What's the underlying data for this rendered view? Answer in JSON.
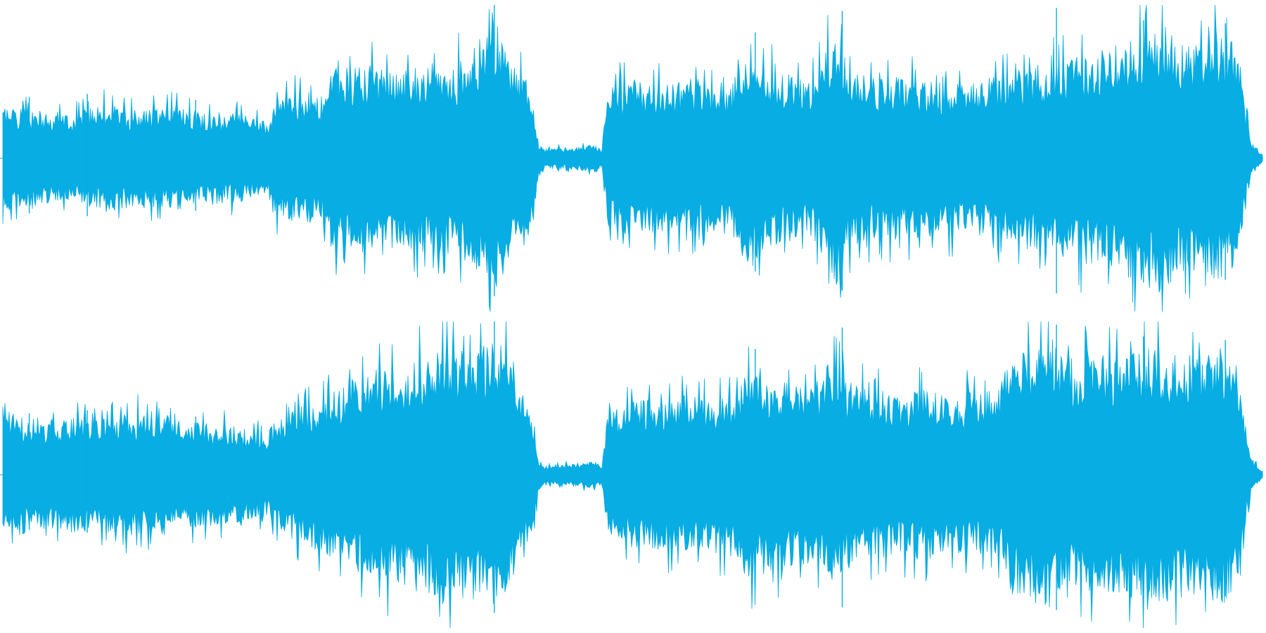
{
  "waveform": {
    "color": "#07ADE3",
    "background": "#FFFFFF",
    "channels": [
      {
        "name": "left",
        "envelope": [
          [
            0.0,
            0.35
          ],
          [
            0.02,
            0.34
          ],
          [
            0.04,
            0.28
          ],
          [
            0.06,
            0.3
          ],
          [
            0.08,
            0.36
          ],
          [
            0.1,
            0.33
          ],
          [
            0.12,
            0.32
          ],
          [
            0.14,
            0.35
          ],
          [
            0.16,
            0.31
          ],
          [
            0.18,
            0.3
          ],
          [
            0.2,
            0.27
          ],
          [
            0.21,
            0.24
          ],
          [
            0.215,
            0.38
          ],
          [
            0.24,
            0.44
          ],
          [
            0.255,
            0.42
          ],
          [
            0.26,
            0.58
          ],
          [
            0.28,
            0.62
          ],
          [
            0.3,
            0.6
          ],
          [
            0.32,
            0.58
          ],
          [
            0.34,
            0.64
          ],
          [
            0.36,
            0.62
          ],
          [
            0.37,
            0.72
          ],
          [
            0.38,
            0.8
          ],
          [
            0.39,
            0.92
          ],
          [
            0.4,
            0.7
          ],
          [
            0.41,
            0.56
          ],
          [
            0.42,
            0.48
          ],
          [
            0.425,
            0.1
          ],
          [
            0.43,
            0.06
          ],
          [
            0.44,
            0.07
          ],
          [
            0.46,
            0.08
          ],
          [
            0.47,
            0.09
          ],
          [
            0.475,
            0.05
          ],
          [
            0.48,
            0.45
          ],
          [
            0.5,
            0.52
          ],
          [
            0.52,
            0.48
          ],
          [
            0.54,
            0.5
          ],
          [
            0.56,
            0.48
          ],
          [
            0.58,
            0.52
          ],
          [
            0.595,
            0.78
          ],
          [
            0.6,
            0.62
          ],
          [
            0.62,
            0.56
          ],
          [
            0.64,
            0.5
          ],
          [
            0.66,
            0.82
          ],
          [
            0.665,
            0.92
          ],
          [
            0.67,
            0.6
          ],
          [
            0.69,
            0.52
          ],
          [
            0.71,
            0.54
          ],
          [
            0.73,
            0.52
          ],
          [
            0.75,
            0.5
          ],
          [
            0.77,
            0.5
          ],
          [
            0.79,
            0.54
          ],
          [
            0.81,
            0.6
          ],
          [
            0.83,
            0.62
          ],
          [
            0.85,
            0.66
          ],
          [
            0.87,
            0.72
          ],
          [
            0.89,
            0.76
          ],
          [
            0.9,
            0.84
          ],
          [
            0.92,
            0.88
          ],
          [
            0.94,
            0.74
          ],
          [
            0.96,
            0.8
          ],
          [
            0.975,
            0.78
          ],
          [
            0.985,
            0.4
          ],
          [
            0.99,
            0.12
          ],
          [
            1.0,
            0.02
          ]
        ]
      },
      {
        "name": "right",
        "envelope": [
          [
            0.0,
            0.42
          ],
          [
            0.02,
            0.38
          ],
          [
            0.04,
            0.36
          ],
          [
            0.06,
            0.39
          ],
          [
            0.08,
            0.37
          ],
          [
            0.1,
            0.4
          ],
          [
            0.12,
            0.42
          ],
          [
            0.14,
            0.36
          ],
          [
            0.16,
            0.34
          ],
          [
            0.18,
            0.32
          ],
          [
            0.2,
            0.3
          ],
          [
            0.21,
            0.28
          ],
          [
            0.22,
            0.4
          ],
          [
            0.24,
            0.46
          ],
          [
            0.26,
            0.54
          ],
          [
            0.28,
            0.64
          ],
          [
            0.3,
            0.7
          ],
          [
            0.32,
            0.74
          ],
          [
            0.34,
            0.8
          ],
          [
            0.35,
            0.88
          ],
          [
            0.36,
            0.82
          ],
          [
            0.37,
            0.86
          ],
          [
            0.38,
            0.84
          ],
          [
            0.39,
            0.94
          ],
          [
            0.4,
            0.78
          ],
          [
            0.41,
            0.56
          ],
          [
            0.42,
            0.42
          ],
          [
            0.425,
            0.1
          ],
          [
            0.43,
            0.06
          ],
          [
            0.44,
            0.07
          ],
          [
            0.46,
            0.08
          ],
          [
            0.47,
            0.09
          ],
          [
            0.475,
            0.05
          ],
          [
            0.48,
            0.42
          ],
          [
            0.5,
            0.48
          ],
          [
            0.52,
            0.5
          ],
          [
            0.54,
            0.52
          ],
          [
            0.56,
            0.5
          ],
          [
            0.58,
            0.54
          ],
          [
            0.595,
            0.74
          ],
          [
            0.6,
            0.66
          ],
          [
            0.62,
            0.62
          ],
          [
            0.64,
            0.58
          ],
          [
            0.66,
            0.7
          ],
          [
            0.67,
            0.62
          ],
          [
            0.69,
            0.56
          ],
          [
            0.71,
            0.54
          ],
          [
            0.73,
            0.56
          ],
          [
            0.75,
            0.52
          ],
          [
            0.77,
            0.54
          ],
          [
            0.79,
            0.56
          ],
          [
            0.8,
            0.78
          ],
          [
            0.81,
            0.8
          ],
          [
            0.83,
            0.92
          ],
          [
            0.85,
            0.76
          ],
          [
            0.87,
            0.78
          ],
          [
            0.89,
            0.8
          ],
          [
            0.91,
            0.84
          ],
          [
            0.93,
            0.82
          ],
          [
            0.95,
            0.8
          ],
          [
            0.97,
            0.84
          ],
          [
            0.98,
            0.7
          ],
          [
            0.985,
            0.38
          ],
          [
            0.99,
            0.12
          ],
          [
            1.0,
            0.02
          ]
        ]
      }
    ],
    "transients": [
      {
        "pos": 0.021,
        "amp": 0.4
      },
      {
        "pos": 0.067,
        "amp": 0.42
      },
      {
        "pos": 0.153,
        "amp": 0.38
      },
      {
        "pos": 0.39,
        "amp": 1.0
      },
      {
        "pos": 0.597,
        "amp": 0.82
      },
      {
        "pos": 0.666,
        "amp": 0.96
      },
      {
        "pos": 0.836,
        "amp": 0.98
      },
      {
        "pos": 0.905,
        "amp": 0.9
      },
      {
        "pos": 0.97,
        "amp": 0.88
      }
    ]
  }
}
